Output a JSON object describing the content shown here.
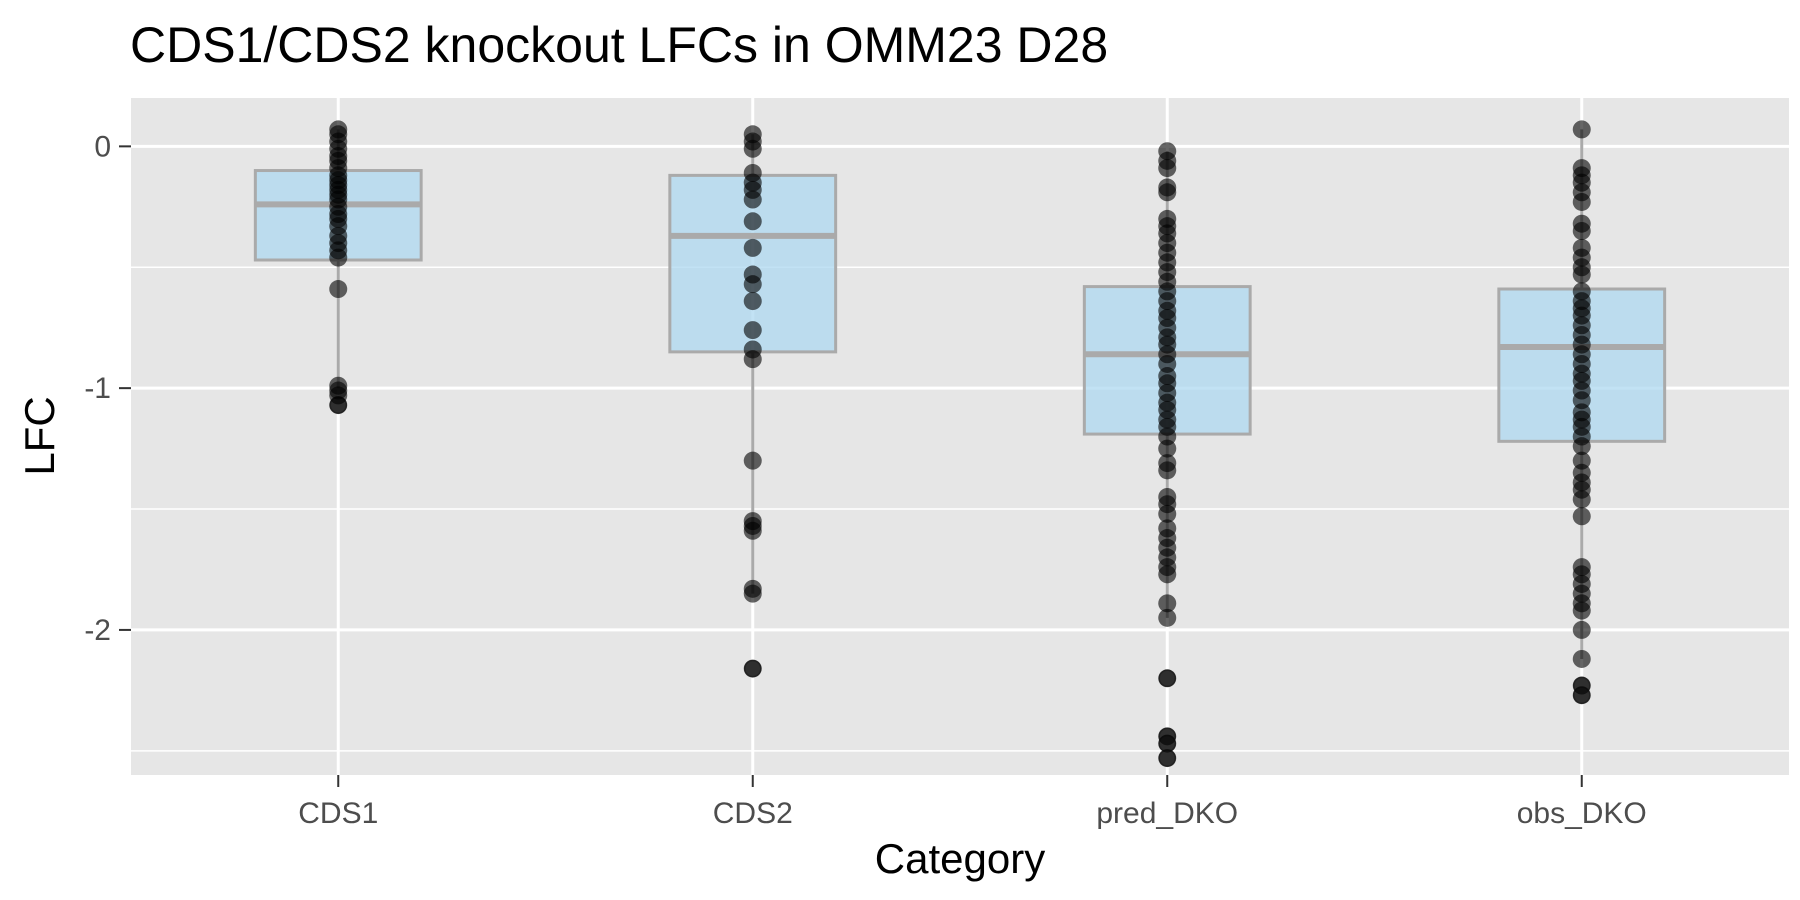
{
  "chart_data": {
    "type": "boxplot",
    "title": "CDS1/CDS2 knockout LFCs in  OMM23 D28",
    "xlabel": "Category",
    "ylabel": "LFC",
    "categories": [
      "CDS1",
      "CDS2",
      "pred_DKO",
      "obs_DKO"
    ],
    "ylim": [
      -2.6,
      0.2
    ],
    "yticks": [
      0,
      -1,
      -2
    ],
    "ytick_labels": [
      "0",
      "-1",
      "-2"
    ],
    "grid": true,
    "legend": "none",
    "colors": {
      "panel_background": "#e6e6e6",
      "grid": "#ffffff",
      "box_fill": "#add8f0",
      "box_outline": "#aaaaaa",
      "point": "#000000"
    },
    "boxes": [
      {
        "category": "CDS1",
        "whisker_low": -1.0,
        "q1": -0.47,
        "median": -0.24,
        "q3": -0.1,
        "whisker_high": 0.07,
        "outliers": [
          -1.07
        ]
      },
      {
        "category": "CDS2",
        "whisker_low": -1.85,
        "q1": -0.85,
        "median": -0.37,
        "q3": -0.12,
        "whisker_high": 0.05,
        "outliers": [
          -2.16
        ]
      },
      {
        "category": "pred_DKO",
        "whisker_low": -1.95,
        "q1": -1.19,
        "median": -0.86,
        "q3": -0.58,
        "whisker_high": -0.02,
        "outliers": [
          -2.2,
          -2.44,
          -2.47,
          -2.53
        ]
      },
      {
        "category": "obs_DKO",
        "whisker_low": -2.12,
        "q1": -1.22,
        "median": -0.83,
        "q3": -0.59,
        "whisker_high": 0.07,
        "outliers": [
          -2.23,
          -2.27
        ]
      }
    ],
    "points": [
      {
        "category": "CDS1",
        "y": [
          0.07,
          0.05,
          0.02,
          -0.01,
          -0.04,
          -0.06,
          -0.09,
          -0.12,
          -0.14,
          -0.16,
          -0.18,
          -0.2,
          -0.22,
          -0.25,
          -0.28,
          -0.3,
          -0.33,
          -0.37,
          -0.4,
          -0.43,
          -0.46,
          -0.59,
          -0.99,
          -1.01,
          -1.03,
          -1.07
        ]
      },
      {
        "category": "CDS2",
        "y": [
          0.05,
          0.02,
          -0.01,
          -0.11,
          -0.15,
          -0.18,
          -0.22,
          -0.31,
          -0.42,
          -0.53,
          -0.57,
          -0.64,
          -0.76,
          -0.84,
          -0.88,
          -1.3,
          -1.55,
          -1.57,
          -1.59,
          -1.83,
          -1.85,
          -2.16
        ]
      },
      {
        "category": "pred_DKO",
        "y": [
          -0.02,
          -0.06,
          -0.09,
          -0.17,
          -0.19,
          -0.3,
          -0.33,
          -0.36,
          -0.4,
          -0.44,
          -0.48,
          -0.52,
          -0.56,
          -0.6,
          -0.64,
          -0.68,
          -0.71,
          -0.75,
          -0.79,
          -0.82,
          -0.86,
          -0.9,
          -0.95,
          -0.98,
          -1.02,
          -1.06,
          -1.09,
          -1.13,
          -1.16,
          -1.2,
          -1.25,
          -1.31,
          -1.34,
          -1.45,
          -1.48,
          -1.52,
          -1.58,
          -1.62,
          -1.66,
          -1.7,
          -1.74,
          -1.77,
          -1.89,
          -1.95,
          -2.2,
          -2.44,
          -2.47,
          -2.53
        ]
      },
      {
        "category": "obs_DKO",
        "y": [
          0.07,
          -0.09,
          -0.12,
          -0.15,
          -0.19,
          -0.23,
          -0.32,
          -0.35,
          -0.42,
          -0.46,
          -0.5,
          -0.53,
          -0.6,
          -0.64,
          -0.67,
          -0.7,
          -0.74,
          -0.78,
          -0.82,
          -0.86,
          -0.9,
          -0.94,
          -0.97,
          -1.01,
          -1.05,
          -1.1,
          -1.13,
          -1.16,
          -1.2,
          -1.24,
          -1.3,
          -1.35,
          -1.39,
          -1.42,
          -1.46,
          -1.53,
          -1.74,
          -1.77,
          -1.81,
          -1.85,
          -1.89,
          -1.92,
          -2.0,
          -2.12,
          -2.23,
          -2.27
        ]
      }
    ]
  }
}
